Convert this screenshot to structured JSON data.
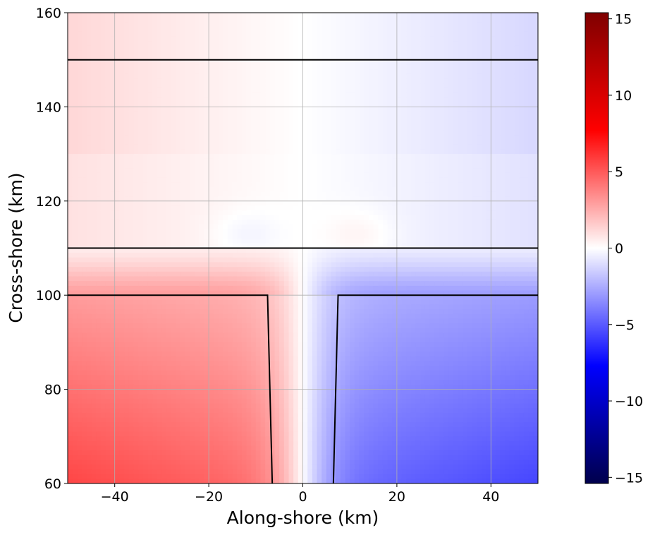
{
  "chart_data": {
    "type": "heatmap",
    "title": "",
    "xlabel": "Along-shore (km)",
    "ylabel": "Cross-shore (km)",
    "xlim": [
      -50,
      50
    ],
    "ylim": [
      60,
      160
    ],
    "xticks": [
      -40,
      -20,
      0,
      20,
      40
    ],
    "yticks": [
      60,
      80,
      100,
      120,
      140,
      160
    ],
    "grid": true,
    "colormap": "seismic",
    "colorbar": {
      "range": [
        -15.4,
        15.4
      ],
      "ticks": [
        -15,
        -10,
        -5,
        0,
        5,
        10,
        15
      ]
    },
    "field_samples": {
      "description_points": [
        {
          "x": -45,
          "y": 62,
          "value": 5.5
        },
        {
          "x": -20,
          "y": 80,
          "value": 3.5
        },
        {
          "x": -5,
          "y": 95,
          "value": 2.5
        },
        {
          "x": 0,
          "y": 90,
          "value": 0
        },
        {
          "x": 5,
          "y": 95,
          "value": -2.5
        },
        {
          "x": 20,
          "y": 80,
          "value": -3.5
        },
        {
          "x": 45,
          "y": 62,
          "value": -5.5
        },
        {
          "x": -45,
          "y": 150,
          "value": 1
        },
        {
          "x": 45,
          "y": 150,
          "value": -1
        },
        {
          "x": -12,
          "y": 113,
          "value": -0.5
        },
        {
          "x": 12,
          "y": 113,
          "value": 0.5
        }
      ]
    },
    "contour_lines": [
      {
        "points": [
          [
            -50,
            150
          ],
          [
            50,
            150
          ]
        ]
      },
      {
        "points": [
          [
            -50,
            110
          ],
          [
            50,
            110
          ]
        ]
      },
      {
        "points": [
          [
            -50,
            100
          ],
          [
            -7.5,
            100
          ],
          [
            -6.5,
            60
          ]
        ]
      },
      {
        "points": [
          [
            50,
            100
          ],
          [
            7.5,
            100
          ],
          [
            6.5,
            60
          ]
        ]
      }
    ],
    "line_color": "#000000"
  }
}
